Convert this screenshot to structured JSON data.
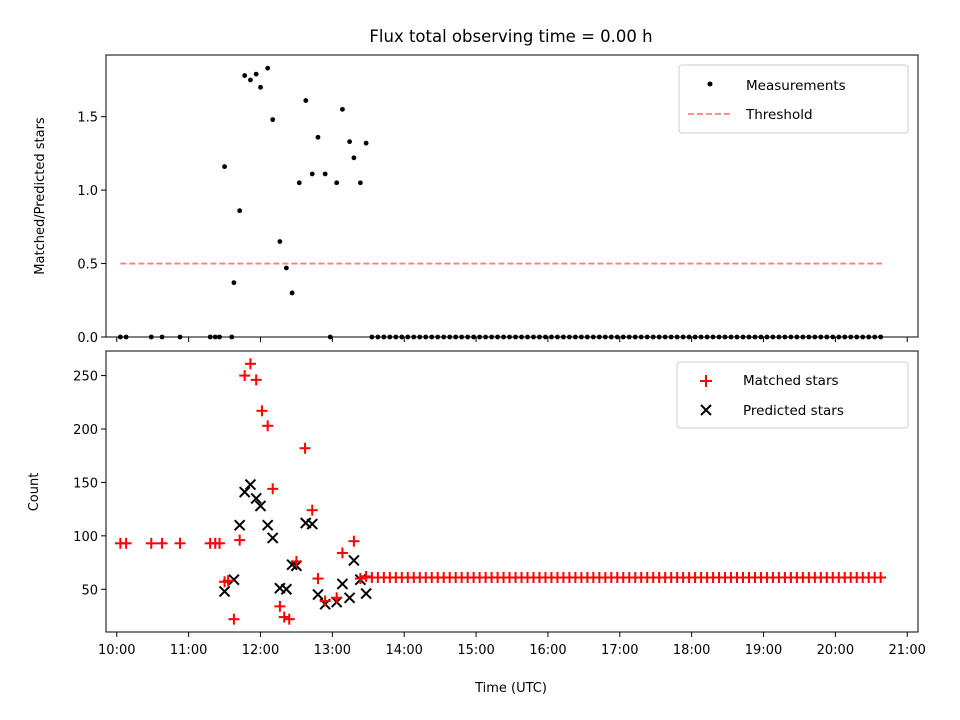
{
  "title": "Flux total observing time = 0.00 h",
  "chart_data": [
    {
      "type": "scatter",
      "ylabel": "Matched/Predicted stars",
      "xlim": [
        9.85,
        21.15
      ],
      "ylim": [
        0,
        1.92
      ],
      "yticks": [
        0.0,
        0.5,
        1.0,
        1.5
      ],
      "ytick_labels": [
        "0.0",
        "0.5",
        "1.0",
        "1.5"
      ],
      "legend": {
        "position": "top-right",
        "entries": [
          {
            "label": "Measurements",
            "marker": "dot",
            "color": "#000000"
          },
          {
            "label": "Threshold",
            "marker": "dashed-line",
            "color": "#ff7f7f"
          }
        ]
      },
      "threshold": {
        "value": 0.5,
        "x_start": 10.05,
        "x_end": 20.65,
        "color": "#ff7f7f"
      },
      "measurements": [
        [
          11.5,
          1.16
        ],
        [
          11.63,
          0.37
        ],
        [
          11.71,
          0.86
        ],
        [
          11.78,
          1.78
        ],
        [
          11.86,
          1.75
        ],
        [
          11.94,
          1.79
        ],
        [
          12.0,
          1.7
        ],
        [
          12.1,
          1.83
        ],
        [
          12.17,
          1.48
        ],
        [
          12.27,
          0.65
        ],
        [
          12.36,
          0.47
        ],
        [
          12.44,
          0.3
        ],
        [
          12.54,
          1.05
        ],
        [
          12.63,
          1.61
        ],
        [
          12.72,
          1.11
        ],
        [
          12.8,
          1.36
        ],
        [
          12.9,
          1.11
        ],
        [
          13.06,
          1.05
        ],
        [
          13.14,
          1.55
        ],
        [
          13.24,
          1.33
        ],
        [
          13.3,
          1.22
        ],
        [
          13.39,
          1.05
        ],
        [
          13.47,
          1.32
        ],
        [
          10.05,
          0
        ],
        [
          10.13,
          0
        ],
        [
          10.48,
          0
        ],
        [
          10.63,
          0
        ],
        [
          10.88,
          0
        ],
        [
          11.3,
          0
        ],
        [
          11.37,
          0
        ],
        [
          11.43,
          0
        ],
        [
          11.6,
          0
        ],
        [
          12.97,
          0
        ]
      ],
      "zero_series": {
        "x_start": 13.55,
        "x_end": 20.65,
        "step": 0.0833,
        "value": 0
      }
    },
    {
      "type": "scatter",
      "ylabel": "Count",
      "xlabel": "Time (UTC)",
      "xlim": [
        9.85,
        21.15
      ],
      "ylim": [
        10,
        273
      ],
      "xticks": [
        10,
        11,
        12,
        13,
        14,
        15,
        16,
        17,
        18,
        19,
        20,
        21
      ],
      "xtick_labels": [
        "10:00",
        "11:00",
        "12:00",
        "13:00",
        "14:00",
        "15:00",
        "16:00",
        "17:00",
        "18:00",
        "19:00",
        "20:00",
        "21:00"
      ],
      "yticks": [
        50,
        100,
        150,
        200,
        250
      ],
      "ytick_labels": [
        "50",
        "100",
        "150",
        "200",
        "250"
      ],
      "legend": {
        "position": "top-right",
        "entries": [
          {
            "label": "Matched stars",
            "marker": "plus",
            "color": "#ff0000"
          },
          {
            "label": "Predicted stars",
            "marker": "x",
            "color": "#000000"
          }
        ]
      },
      "matched": [
        [
          10.05,
          93
        ],
        [
          10.13,
          93
        ],
        [
          10.48,
          93
        ],
        [
          10.63,
          93
        ],
        [
          10.88,
          93
        ],
        [
          11.3,
          93
        ],
        [
          11.37,
          93
        ],
        [
          11.43,
          93
        ],
        [
          11.5,
          57
        ],
        [
          11.55,
          58
        ],
        [
          11.63,
          22
        ],
        [
          11.71,
          96
        ],
        [
          11.78,
          250
        ],
        [
          11.86,
          261
        ],
        [
          11.94,
          246
        ],
        [
          12.02,
          217
        ],
        [
          12.1,
          203
        ],
        [
          12.17,
          144
        ],
        [
          12.27,
          34
        ],
        [
          12.33,
          24
        ],
        [
          12.4,
          22
        ],
        [
          12.5,
          76
        ],
        [
          12.62,
          182
        ],
        [
          12.72,
          124
        ],
        [
          12.8,
          60
        ],
        [
          12.9,
          39
        ],
        [
          13.06,
          42
        ],
        [
          13.14,
          84
        ],
        [
          13.3,
          95
        ],
        [
          13.39,
          60
        ],
        [
          13.47,
          62
        ]
      ],
      "predicted": [
        [
          11.5,
          48
        ],
        [
          11.63,
          59
        ],
        [
          11.71,
          110
        ],
        [
          11.78,
          141
        ],
        [
          11.86,
          148
        ],
        [
          11.94,
          135
        ],
        [
          12.0,
          128
        ],
        [
          12.1,
          110
        ],
        [
          12.17,
          98
        ],
        [
          12.27,
          51
        ],
        [
          12.36,
          50
        ],
        [
          12.44,
          73
        ],
        [
          12.5,
          72
        ],
        [
          12.63,
          112
        ],
        [
          12.72,
          111
        ],
        [
          12.8,
          45
        ],
        [
          12.9,
          36
        ],
        [
          13.06,
          38
        ],
        [
          13.14,
          55
        ],
        [
          13.24,
          42
        ],
        [
          13.3,
          77
        ],
        [
          13.39,
          59
        ],
        [
          13.47,
          46
        ]
      ],
      "matched_constant": {
        "x_start": 13.55,
        "x_end": 20.65,
        "step": 0.0833,
        "value": 61
      }
    }
  ]
}
